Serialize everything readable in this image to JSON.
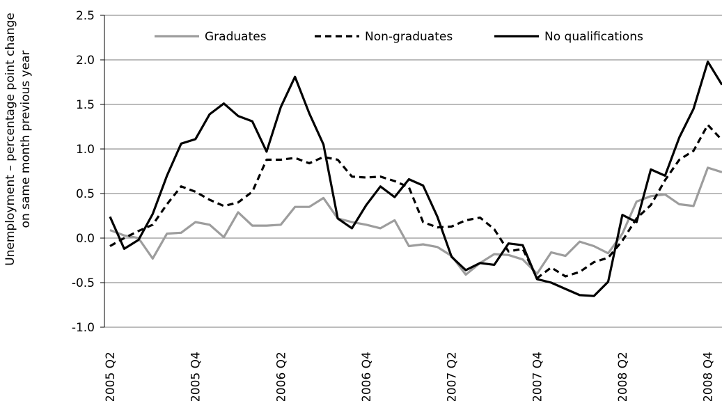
{
  "chart_data": {
    "type": "line",
    "ylabel": [
      "Unemployment  – percentage point change",
      "on same month previous year"
    ],
    "categories": [
      "2005 Q2",
      null,
      null,
      null,
      null,
      null,
      "2005 Q4",
      null,
      null,
      null,
      null,
      null,
      "2006 Q2",
      null,
      null,
      null,
      null,
      null,
      "2006 Q4",
      null,
      null,
      null,
      null,
      null,
      "2007 Q2",
      null,
      null,
      null,
      null,
      null,
      "2007 Q4",
      null,
      null,
      null,
      null,
      null,
      "2008 Q2",
      null,
      null,
      null,
      null,
      null,
      "2008 Q4",
      null
    ],
    "series": [
      {
        "name": "Graduates",
        "color": "#9d9d9d",
        "dash": false,
        "values": [
          0.09,
          0.03,
          0.0,
          -0.23,
          0.05,
          0.06,
          0.18,
          0.15,
          0.01,
          0.29,
          0.14,
          0.14,
          0.15,
          0.35,
          0.35,
          0.45,
          0.22,
          0.18,
          0.15,
          0.11,
          0.2,
          -0.09,
          -0.07,
          -0.1,
          -0.2,
          -0.41,
          -0.28,
          -0.18,
          -0.19,
          -0.24,
          -0.4,
          -0.16,
          -0.2,
          -0.04,
          -0.09,
          -0.17,
          0.05,
          0.41,
          0.47,
          0.49,
          0.38,
          0.36,
          0.79,
          0.74
        ]
      },
      {
        "name": "Non-graduates",
        "color": "#000000",
        "dash": true,
        "values": [
          -0.09,
          0.0,
          0.08,
          0.15,
          0.38,
          0.58,
          0.52,
          0.43,
          0.36,
          0.4,
          0.52,
          0.88,
          0.88,
          0.9,
          0.84,
          0.91,
          0.88,
          0.69,
          0.68,
          0.69,
          0.64,
          0.57,
          0.18,
          0.12,
          0.13,
          0.2,
          0.23,
          0.1,
          -0.15,
          -0.12,
          -0.45,
          -0.33,
          -0.43,
          -0.38,
          -0.27,
          -0.22,
          -0.03,
          0.22,
          0.37,
          0.65,
          0.88,
          0.98,
          1.27,
          1.1
        ]
      },
      {
        "name": "No qualifications",
        "color": "#000000",
        "dash": false,
        "values": [
          0.24,
          -0.12,
          -0.02,
          0.27,
          0.7,
          1.06,
          1.11,
          1.39,
          1.51,
          1.37,
          1.31,
          0.97,
          1.47,
          1.81,
          1.4,
          1.05,
          0.22,
          0.11,
          0.37,
          0.58,
          0.46,
          0.66,
          0.59,
          0.24,
          -0.21,
          -0.36,
          -0.28,
          -0.3,
          -0.06,
          -0.08,
          -0.46,
          -0.5,
          -0.57,
          -0.64,
          -0.65,
          -0.49,
          0.26,
          0.18,
          0.77,
          0.7,
          1.13,
          1.45,
          1.98,
          1.72
        ]
      }
    ],
    "ylim": [
      -1.0,
      2.5
    ],
    "yticks": [
      {
        "value": -1,
        "label": "-1.0"
      },
      -0.5,
      {
        "value": 0,
        "label": "0.0"
      },
      0.5,
      {
        "value": 1,
        "label": "1.0"
      },
      1.5,
      {
        "value": 2,
        "label": "2.0"
      },
      2.5
    ],
    "grid": true
  }
}
